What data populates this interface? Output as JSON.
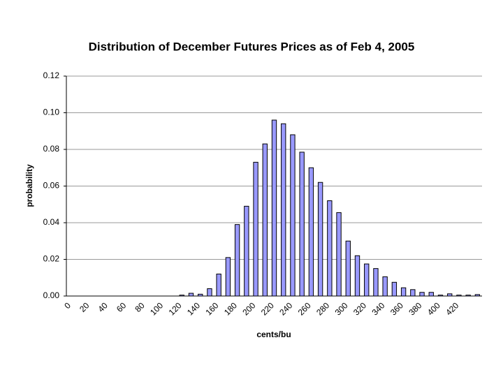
{
  "chart_data": {
    "type": "bar",
    "title": "Distribution of December Futures Prices as of Feb 4, 2005",
    "x_label": "cents/bu",
    "y_label": "probability",
    "categories": [
      "0",
      null,
      "20",
      null,
      "40",
      null,
      "60",
      null,
      "80",
      null,
      "100",
      null,
      "120",
      null,
      "140",
      null,
      "160",
      null,
      "180",
      null,
      "200",
      null,
      "220",
      null,
      "240",
      null,
      "260",
      null,
      "280",
      null,
      "300",
      null,
      "320",
      null,
      "340",
      null,
      "360",
      null,
      "380",
      null,
      "400",
      null,
      "420",
      null,
      null
    ],
    "values": [
      0,
      0,
      0,
      0,
      0,
      0,
      0,
      0,
      0,
      0,
      0,
      0,
      0.0005,
      0.0015,
      0.001,
      0.004,
      0.012,
      0.021,
      0.039,
      0.049,
      0.073,
      0.083,
      0.096,
      0.094,
      0.088,
      0.0785,
      0.07,
      0.062,
      0.052,
      0.0455,
      0.03,
      0.022,
      0.0175,
      0.015,
      0.0105,
      0.0075,
      0.0045,
      0.0035,
      0.002,
      0.002,
      0.0005,
      0.0012,
      0.0005,
      0.0005,
      0.0008
    ],
    "color": "#9999ff",
    "ylim": [
      0,
      0.12
    ],
    "yticks": [
      {
        "value": 0,
        "label": "0.00"
      },
      {
        "value": 0.02,
        "label": "0.02"
      },
      {
        "value": 0.04,
        "label": "0.04"
      },
      {
        "value": 0.06,
        "label": "0.06"
      },
      {
        "value": 0.08,
        "label": "0.08"
      },
      {
        "value": 0.1,
        "label": "0.10"
      },
      {
        "value": 0.12,
        "label": "0.12"
      }
    ],
    "grid": true
  }
}
